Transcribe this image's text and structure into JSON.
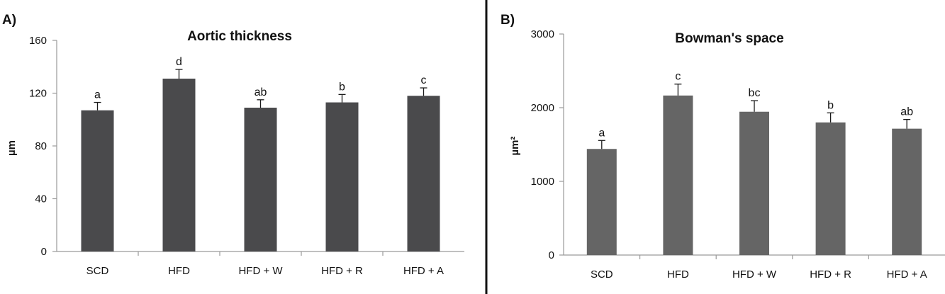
{
  "colors": {
    "panel_a_bar": "#4a4a4c",
    "panel_b_bar": "#656565",
    "axis": "#9a9a9a",
    "divider": "#111111"
  },
  "chart_data": [
    {
      "type": "bar",
      "panel_label": "A)",
      "title": "Aortic thickness",
      "xlabel": "",
      "ylabel": "µm",
      "ylim": [
        0,
        160
      ],
      "yticks": [
        0,
        40,
        80,
        120,
        160
      ],
      "ytick_labels": [
        "0",
        "40",
        "80",
        "120",
        "160"
      ],
      "grid": false,
      "legend": "none",
      "categories": [
        "SCD",
        "HFD",
        "HFD + W",
        "HFD + R",
        "HFD + A"
      ],
      "values": [
        107,
        131,
        109,
        113,
        118
      ],
      "error": [
        6,
        7,
        6,
        6,
        6
      ],
      "significance": [
        "a",
        "d",
        "ab",
        "b",
        "c"
      ]
    },
    {
      "type": "bar",
      "panel_label": "B)",
      "title": "Bowman's space",
      "xlabel": "",
      "ylabel": "µm²",
      "ylim": [
        0,
        3000
      ],
      "yticks": [
        0,
        1000,
        2000,
        3000
      ],
      "ytick_labels": [
        "0",
        "1000",
        "2000",
        "3000"
      ],
      "grid": false,
      "legend": "none",
      "categories": [
        "SCD",
        "HFD",
        "HFD + W",
        "HFD + R",
        "HFD + A"
      ],
      "values": [
        1440,
        2165,
        1945,
        1800,
        1715
      ],
      "error": [
        115,
        155,
        150,
        130,
        125
      ],
      "significance": [
        "a",
        "c",
        "bc",
        "b",
        "ab"
      ]
    }
  ]
}
